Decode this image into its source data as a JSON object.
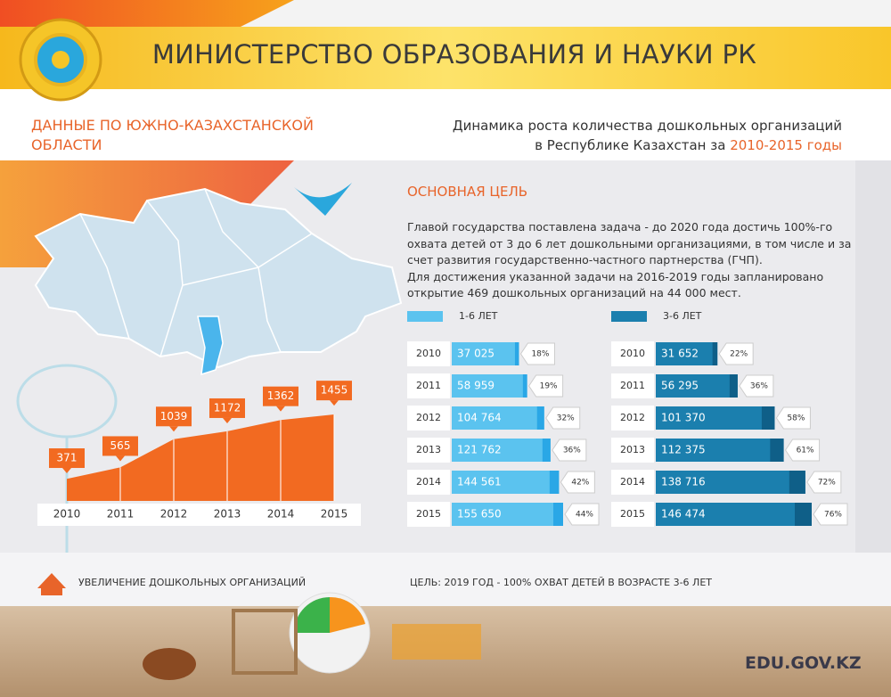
{
  "header": {
    "title": "МИНИСТЕРСТВО ОБРАЗОВАНИЯ И НАУКИ РК"
  },
  "region_title": "ДАННЫЕ ПО ЮЖНО-КАЗАХСТАНСКОЙ ОБЛАСТИ",
  "subtitle": {
    "text": "Динамика роста количества дошкольных организаций в Республике Казахстан за",
    "highlight": "2010-2015 годы"
  },
  "goal": {
    "title": "ОСНОВНАЯ ЦЕЛЬ",
    "paragraphs": [
      "Главой государства поставлена задача - до 2020 года достичь 100%-го охвата детей от 3 до 6 лет дошкольными организациями, в том числе и за счет развития государственно-частного партнерства (ГЧП).",
      "Для достижения указанной задачи на 2016-2019 годы запланировано открытие 469 дошкольных организаций на 44 000 мест."
    ]
  },
  "footer": {
    "left": "УВЕЛИЧЕНИЕ ДОШКОЛЬНЫХ ОРГАНИЗАЦИЙ",
    "right": "ЦЕЛЬ: 2019 ГОД - 100% ОХВАТ ДЕТЕЙ В ВОЗРАСТЕ 3-6 ЛЕТ",
    "site": "EDU.GOV.KZ"
  },
  "chart_data": [
    {
      "type": "area",
      "x": [
        2010,
        2011,
        2012,
        2013,
        2014,
        2015
      ],
      "values": [
        371,
        565,
        1039,
        1172,
        1362,
        1455
      ],
      "color": "#f26a21"
    },
    {
      "type": "hbar",
      "categories": [
        2010,
        2011,
        2012,
        2013,
        2014,
        2015
      ],
      "series": [
        {
          "name": "1-6 ЛЕТ",
          "color": "#5bc3ef",
          "values": [
            37025,
            58959,
            104764,
            121762,
            144561,
            155650
          ],
          "value_labels": [
            "37 025",
            "58 959",
            "104 764",
            "121 762",
            "144 561",
            "155 650"
          ],
          "coverage": [
            18,
            19,
            32,
            36,
            42,
            44
          ],
          "coverage_labels": [
            "18%",
            "19%",
            "32%",
            "36%",
            "42%",
            "44%"
          ]
        },
        {
          "name": "3-6 ЛЕТ",
          "color": "#1b7fae",
          "values": [
            31652,
            56295,
            101370,
            112375,
            138716,
            146474
          ],
          "value_labels": [
            "31 652",
            "56 295",
            "101 370",
            "112 375",
            "138 716",
            "146 474"
          ],
          "coverage": [
            22,
            36,
            58,
            61,
            72,
            76
          ],
          "coverage_labels": [
            "22%",
            "36%",
            "58%",
            "61%",
            "72%",
            "76%"
          ]
        }
      ]
    }
  ]
}
